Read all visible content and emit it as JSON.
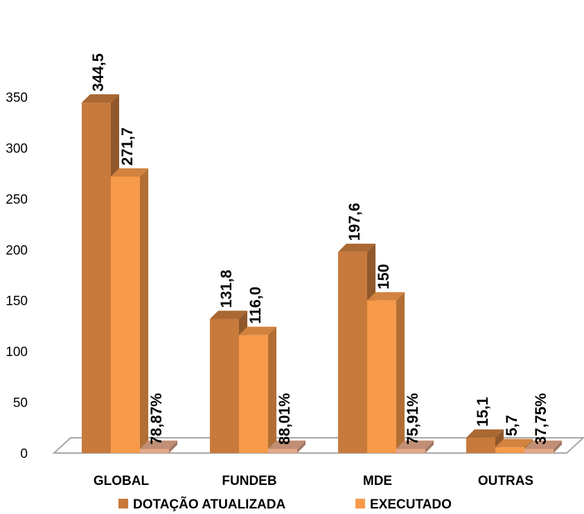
{
  "chart_data": {
    "type": "bar",
    "style": "3d-clustered",
    "categories": [
      "GLOBAL",
      "FUNDEB",
      "MDE",
      "OUTRAS"
    ],
    "series": [
      {
        "name": "DOTAÇÃO ATUALIZADA",
        "values": [
          344.5,
          131.8,
          197.6,
          15.1
        ],
        "labels": [
          "344,5",
          "131,8",
          "197,6",
          "15,1"
        ],
        "color": "#C87A3C"
      },
      {
        "name": "EXECUTADO",
        "values": [
          271.7,
          116.0,
          150,
          5.7
        ],
        "labels": [
          "271,7",
          "116,0",
          "150",
          "5,7"
        ],
        "color": "#F79A4A"
      },
      {
        "values": [
          0.7887,
          0.8801,
          0.7591,
          0.3775
        ],
        "labels": [
          "78,87%",
          "88,01%",
          "75,91%",
          "37,75%"
        ],
        "color": "#E3A88A",
        "show_in_legend": false
      }
    ],
    "yticks": [
      "0",
      "50",
      "100",
      "150",
      "200",
      "250",
      "300",
      "350"
    ],
    "ylim": [
      0,
      350
    ],
    "grid": false,
    "legend_position": "bottom"
  }
}
